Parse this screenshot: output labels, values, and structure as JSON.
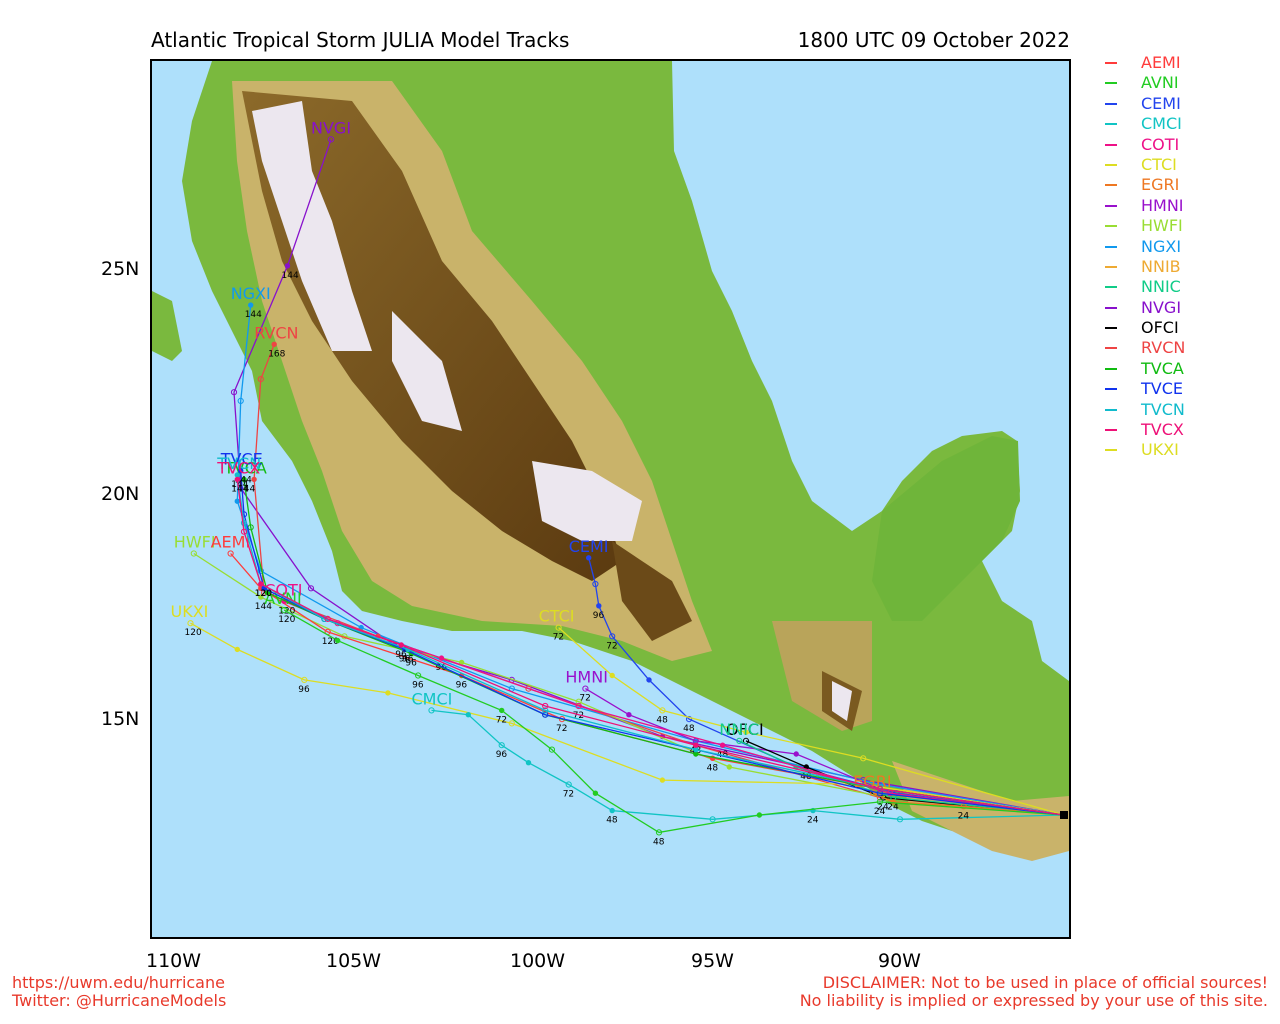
{
  "title": "Atlantic Tropical Storm JULIA Model Tracks",
  "timestamp": "1800 UTC 09 October 2022",
  "axes": {
    "lon_ticks": [
      "110W",
      "105W",
      "100W",
      "95W",
      "90W"
    ],
    "lat_ticks": [
      "25N",
      "20N",
      "15N"
    ]
  },
  "legend": [
    {
      "name": "AEMI",
      "color": "#ff3b3b"
    },
    {
      "name": "AVNI",
      "color": "#22cc22"
    },
    {
      "name": "CEMI",
      "color": "#2244ee"
    },
    {
      "name": "CMCI",
      "color": "#11c4c4"
    },
    {
      "name": "COTI",
      "color": "#ee1188"
    },
    {
      "name": "CTCI",
      "color": "#dddd22"
    },
    {
      "name": "EGRI",
      "color": "#ee7722"
    },
    {
      "name": "HMNI",
      "color": "#9911cc"
    },
    {
      "name": "HWFI",
      "color": "#99dd33"
    },
    {
      "name": "NGXI",
      "color": "#1199ee"
    },
    {
      "name": "NNIB",
      "color": "#eeaa33"
    },
    {
      "name": "NNIC",
      "color": "#11cc88"
    },
    {
      "name": "NVGI",
      "color": "#8811cc"
    },
    {
      "name": "OFCI",
      "color": "#000000"
    },
    {
      "name": "RVCN",
      "color": "#ee4444"
    },
    {
      "name": "TVCA",
      "color": "#11bb11"
    },
    {
      "name": "TVCE",
      "color": "#1133ee"
    },
    {
      "name": "TVCN",
      "color": "#11bbcc"
    },
    {
      "name": "TVCX",
      "color": "#ee1177"
    },
    {
      "name": "UKXI",
      "color": "#dddd22"
    }
  ],
  "footer": {
    "url": "https://uwm.edu/hurricane",
    "twitter": "Twitter: @HurricaneModels",
    "disclaimer1": "DISCLAIMER: Not to be used in place of official sources!",
    "disclaimer2": "No liability is implied or expressed by your use of this site."
  },
  "tracks": [
    {
      "model": "NVGI",
      "color": "#8811cc",
      "label": "NVGI",
      "points": [
        [
          -83.5,
          12.3
        ],
        [
          -89.5,
          13.1
        ],
        [
          -95.5,
          14.1
        ],
        [
          -100.0,
          15.4
        ],
        [
          -103.5,
          16.2
        ],
        [
          -106.0,
          17.5
        ],
        [
          -108.1,
          19.8
        ],
        [
          -108.3,
          22.0
        ],
        [
          -106.7,
          24.9
        ],
        [
          -105.4,
          27.8
        ]
      ],
      "hours": [
        {
          "h": "144",
          "i": 8
        }
      ]
    },
    {
      "model": "NGXI",
      "color": "#1199ee",
      "label": "NGXI",
      "points": [
        [
          -83.5,
          12.3
        ],
        [
          -89.0,
          13.0
        ],
        [
          -94.5,
          14.0
        ],
        [
          -100.0,
          15.2
        ],
        [
          -104.5,
          16.6
        ],
        [
          -107.5,
          17.9
        ],
        [
          -108.2,
          19.5
        ],
        [
          -108.1,
          21.8
        ],
        [
          -107.8,
          24.0
        ]
      ],
      "hours": [
        {
          "h": "144",
          "i": 8
        }
      ]
    },
    {
      "model": "RVCN",
      "color": "#ee4444",
      "label": "RVCN",
      "points": [
        [
          -83.5,
          12.3
        ],
        [
          -89.0,
          12.7
        ],
        [
          -94.5,
          13.9
        ],
        [
          -99.5,
          15.2
        ],
        [
          -104.0,
          16.4
        ],
        [
          -107.4,
          17.4
        ],
        [
          -107.7,
          20.0
        ],
        [
          -107.5,
          22.3
        ],
        [
          -107.1,
          23.1
        ]
      ],
      "hours": [
        {
          "h": "168",
          "i": 8
        }
      ]
    },
    {
      "model": "HWFI",
      "color": "#99dd33",
      "label": "HWFI",
      "points": [
        [
          -83.5,
          12.3
        ],
        [
          -88.8,
          12.7
        ],
        [
          -93.5,
          13.4
        ],
        [
          -98.0,
          14.9
        ],
        [
          -101.5,
          15.8
        ],
        [
          -105.0,
          16.4
        ],
        [
          -107.5,
          17.3
        ],
        [
          -109.5,
          18.3
        ]
      ],
      "hours": [
        {
          "h": "144",
          "i": 6
        }
      ]
    },
    {
      "model": "UKXI",
      "color": "#dddd22",
      "label": "UKXI",
      "points": [
        [
          -83.5,
          12.3
        ],
        [
          -89.5,
          13.0
        ],
        [
          -95.5,
          13.1
        ],
        [
          -100.0,
          14.4
        ],
        [
          -103.7,
          15.1
        ],
        [
          -106.2,
          15.4
        ],
        [
          -108.2,
          16.1
        ],
        [
          -109.6,
          16.7
        ]
      ],
      "hours": [
        {
          "h": "96",
          "i": 5
        },
        {
          "h": "120",
          "i": 7
        }
      ]
    },
    {
      "model": "CMCI",
      "color": "#11c4c4",
      "label": "CMCI",
      "points": [
        [
          -83.5,
          12.3
        ],
        [
          -88.4,
          12.2
        ],
        [
          -91.0,
          12.4
        ],
        [
          -94.0,
          12.2
        ],
        [
          -97.0,
          12.4
        ],
        [
          -98.3,
          13.0
        ],
        [
          -99.5,
          13.5
        ],
        [
          -100.3,
          13.9
        ],
        [
          -101.3,
          14.6
        ],
        [
          -102.4,
          14.7
        ]
      ],
      "hours": [
        {
          "h": "24",
          "i": 2
        },
        {
          "h": "48",
          "i": 4
        },
        {
          "h": "72",
          "i": 5
        },
        {
          "h": "96",
          "i": 7
        }
      ]
    },
    {
      "model": "CEMI",
      "color": "#2244ee",
      "label": "CEMI",
      "points": [
        [
          -83.5,
          12.3
        ],
        [
          -88.5,
          12.8
        ],
        [
          -91.5,
          13.4
        ],
        [
          -94.7,
          14.5
        ],
        [
          -95.9,
          15.4
        ],
        [
          -97.0,
          16.4
        ],
        [
          -97.4,
          17.1
        ],
        [
          -97.5,
          17.6
        ],
        [
          -97.7,
          18.2
        ]
      ],
      "hours": [
        {
          "h": "48",
          "i": 3
        },
        {
          "h": "72",
          "i": 5
        },
        {
          "h": "96",
          "i": 6
        }
      ]
    },
    {
      "model": "HMNI",
      "color": "#9911cc",
      "label": "HMNI",
      "points": [
        [
          -83.5,
          12.3
        ],
        [
          -89.0,
          12.9
        ],
        [
          -91.5,
          13.7
        ],
        [
          -94.5,
          14.0
        ],
        [
          -96.5,
          14.6
        ],
        [
          -97.8,
          15.2
        ]
      ],
      "hours": [
        {
          "h": "48",
          "i": 3
        },
        {
          "h": "72",
          "i": 5
        }
      ]
    },
    {
      "model": "CTCI",
      "color": "#dddd22",
      "label": "CTCI",
      "points": [
        [
          -83.5,
          12.3
        ],
        [
          -89.5,
          13.6
        ],
        [
          -93.0,
          14.2
        ],
        [
          -95.5,
          14.7
        ],
        [
          -97.0,
          15.5
        ],
        [
          -98.6,
          16.6
        ]
      ],
      "hours": [
        {
          "h": "48",
          "i": 3
        },
        {
          "h": "72",
          "i": 5
        }
      ]
    },
    {
      "model": "OFCI",
      "color": "#000000",
      "label": "OFCI",
      "points": [
        [
          -83.5,
          12.3
        ],
        [
          -88.9,
          12.7
        ],
        [
          -91.2,
          13.4
        ],
        [
          -93.0,
          14.0
        ]
      ],
      "hours": [
        {
          "h": "24",
          "i": 1
        },
        {
          "h": "48",
          "i": 2
        }
      ]
    },
    {
      "model": "NNIC",
      "color": "#11cc88",
      "label": "NNIC",
      "points": [
        [
          -83.5,
          12.3
        ],
        [
          -88.6,
          12.7
        ],
        [
          -91.5,
          13.4
        ],
        [
          -93.2,
          14.0
        ]
      ],
      "hours": [
        {
          "h": "24",
          "i": 1
        }
      ]
    },
    {
      "model": "EGRI",
      "color": "#ee7722",
      "label": "EGRI",
      "points": [
        [
          -83.5,
          12.3
        ],
        [
          -86.5,
          12.5
        ],
        [
          -88.6,
          12.6
        ],
        [
          -89.2,
          12.8
        ]
      ],
      "hours": [
        {
          "h": "24",
          "i": 1
        }
      ]
    },
    {
      "model": "AEMI",
      "color": "#ff3b3b",
      "label": "AEMI",
      "points": [
        [
          -83.5,
          12.3
        ],
        [
          -89.0,
          12.9
        ],
        [
          -94.0,
          13.6
        ],
        [
          -98.5,
          14.5
        ],
        [
          -101.5,
          15.5
        ],
        [
          -105.5,
          16.5
        ],
        [
          -107.5,
          17.5
        ],
        [
          -108.4,
          18.3
        ]
      ],
      "hours": [
        {
          "h": "48",
          "i": 2
        },
        {
          "h": "72",
          "i": 3
        },
        {
          "h": "96",
          "i": 4
        },
        {
          "h": "120",
          "i": 5
        }
      ]
    },
    {
      "model": "COTI",
      "color": "#ee1188",
      "label": "COTI",
      "points": [
        [
          -83.5,
          12.3
        ],
        [
          -88.7,
          12.8
        ],
        [
          -93.7,
          13.9
        ],
        [
          -98.0,
          14.8
        ],
        [
          -102.1,
          15.9
        ],
        [
          -105.2,
          16.7
        ],
        [
          -106.8,
          17.2
        ]
      ],
      "hours": [
        {
          "h": "48",
          "i": 2
        },
        {
          "h": "72",
          "i": 3
        },
        {
          "h": "96",
          "i": 4
        },
        {
          "h": "120",
          "i": 6
        }
      ]
    },
    {
      "model": "AVNI",
      "color": "#22cc22",
      "label": "AVNI",
      "points": [
        [
          -83.5,
          12.3
        ],
        [
          -89.0,
          12.6
        ],
        [
          -92.6,
          12.3
        ],
        [
          -95.6,
          11.9
        ],
        [
          -97.5,
          12.8
        ],
        [
          -98.8,
          13.8
        ],
        [
          -100.3,
          14.7
        ],
        [
          -102.8,
          15.5
        ],
        [
          -105.2,
          16.3
        ],
        [
          -106.8,
          17.0
        ]
      ],
      "hours": [
        {
          "h": "24",
          "i": 1
        },
        {
          "h": "48",
          "i": 3
        },
        {
          "h": "72",
          "i": 6
        },
        {
          "h": "96",
          "i": 7
        },
        {
          "h": "120",
          "i": 9
        }
      ]
    },
    {
      "model": "TVCA",
      "color": "#11bb11",
      "label": "TVCA",
      "points": [
        [
          -83.5,
          12.3
        ],
        [
          -89.0,
          12.9
        ],
        [
          -94.5,
          13.7
        ],
        [
          -99.0,
          14.6
        ],
        [
          -103.0,
          16.0
        ],
        [
          -105.6,
          16.8
        ],
        [
          -107.3,
          17.4
        ],
        [
          -107.8,
          18.9
        ],
        [
          -108.0,
          20.0
        ]
      ],
      "hours": [
        {
          "h": "96",
          "i": 4
        },
        {
          "h": "144",
          "i": 8
        }
      ]
    },
    {
      "model": "TVCE",
      "color": "#1133ee",
      "label": "TVCE",
      "points": [
        [
          -83.5,
          12.3
        ],
        [
          -89.0,
          12.8
        ],
        [
          -94.5,
          13.8
        ],
        [
          -99.0,
          14.6
        ],
        [
          -103.2,
          16.1
        ],
        [
          -105.6,
          16.8
        ],
        [
          -107.4,
          17.5
        ],
        [
          -108.0,
          19.2
        ],
        [
          -108.1,
          20.2
        ]
      ],
      "hours": [
        {
          "h": "96",
          "i": 4
        },
        {
          "h": "144",
          "i": 8
        }
      ]
    },
    {
      "model": "TVCN",
      "color": "#11bbcc",
      "label": "TVCN",
      "points": [
        [
          -83.5,
          12.3
        ],
        [
          -89.0,
          12.9
        ],
        [
          -94.5,
          13.8
        ],
        [
          -99.0,
          14.7
        ],
        [
          -103.1,
          16.1
        ],
        [
          -105.6,
          16.8
        ],
        [
          -107.5,
          17.6
        ],
        [
          -108.0,
          19.0
        ],
        [
          -108.2,
          20.1
        ]
      ],
      "hours": [
        {
          "h": "96",
          "i": 4
        },
        {
          "h": "120",
          "i": 6
        },
        {
          "h": "144",
          "i": 8
        }
      ]
    },
    {
      "model": "TVCX",
      "color": "#ee1177",
      "label": "TVCX",
      "points": [
        [
          -83.5,
          12.3
        ],
        [
          -89.0,
          12.9
        ],
        [
          -94.5,
          13.9
        ],
        [
          -99.0,
          14.8
        ],
        [
          -103.3,
          16.2
        ],
        [
          -105.5,
          16.8
        ],
        [
          -107.5,
          17.6
        ],
        [
          -108.0,
          18.8
        ],
        [
          -108.2,
          20.0
        ]
      ],
      "hours": [
        {
          "h": "96",
          "i": 4
        },
        {
          "h": "120",
          "i": 6
        },
        {
          "h": "144",
          "i": 8
        }
      ]
    }
  ],
  "map_extent": {
    "lon_min": -110.75,
    "lon_max": -83.35,
    "lat_min": 9.5,
    "lat_max": 29.6
  }
}
